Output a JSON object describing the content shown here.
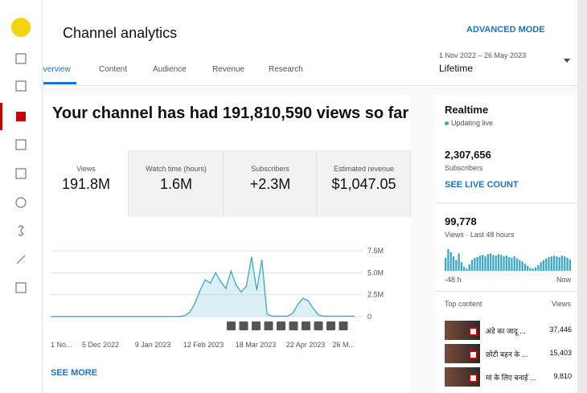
{
  "header": {
    "title": "Channel analytics",
    "advanced_mode": "ADVANCED MODE"
  },
  "tabs": [
    "Overview",
    "Content",
    "Audience",
    "Revenue",
    "Research"
  ],
  "date_range": {
    "range": "1 Nov 2022 – 26 May 2023",
    "label": "Lifetime"
  },
  "headline": "Your channel has had 191,810,590 views so far",
  "metrics": [
    {
      "label": "Views",
      "value": "191.8M"
    },
    {
      "label": "Watch time (hours)",
      "value": "1.6M"
    },
    {
      "label": "Subscribers",
      "value": "+2.3M"
    },
    {
      "label": "Estimated revenue",
      "value": "$1,047.05"
    }
  ],
  "chart": {
    "type": "line",
    "color": "#3ea6c6",
    "x_labels": [
      "1 No...",
      "5 Dec 2022",
      "9 Jan 2023",
      "12 Feb 2023",
      "18 Mar 2023",
      "22 Apr 2023",
      "26 M..."
    ],
    "values": [
      20000,
      20000,
      20000,
      20000,
      20000,
      20000,
      20000,
      20000,
      20000,
      20000,
      20000,
      20000,
      20000,
      20000,
      20000,
      20000,
      20000,
      20000,
      20000,
      20000,
      20000,
      20000,
      20000,
      20000,
      20000,
      30000,
      100000,
      500000,
      1500000,
      3000000,
      4200000,
      3800000,
      5000000,
      4000000,
      3200000,
      5200000,
      3600000,
      2800000,
      3500000,
      6800000,
      3000000,
      6500000,
      300000,
      50000,
      50000,
      50000,
      50000,
      400000,
      1400000,
      2100000,
      1800000,
      900000,
      200000,
      50000,
      50000,
      50000,
      50000,
      50000,
      50000,
      50000
    ],
    "ylim": [
      0,
      7500000
    ],
    "yticks": [
      0,
      {
        "value": 2500000,
        "label": "2.5M"
      },
      {
        "value": 5000000,
        "label": "5.0M"
      },
      {
        "value": 7500000,
        "label": "7.5M"
      }
    ],
    "see_more": "SEE MORE"
  },
  "realtime": {
    "title": "Realtime",
    "status": "Updating live",
    "subscribers": "2,307,656",
    "subscribers_label": "Subscribers",
    "live_count": "SEE LIVE COUNT",
    "views": "99,778",
    "views_label": "Views · Last 48 hours",
    "start": "-48 h",
    "end": "Now",
    "bars": [
      1800,
      3000,
      2600,
      2000,
      1500,
      2400,
      1200,
      600,
      300,
      900,
      1500,
      1800,
      1900,
      2100,
      2200,
      2000,
      2300,
      2400,
      2200,
      2100,
      2300,
      2200,
      2000,
      2100,
      1900,
      1800,
      2000,
      1700,
      1500,
      1300,
      1000,
      700,
      400,
      300,
      500,
      800,
      1200,
      1500,
      1700,
      1900,
      2000,
      2100,
      2000,
      1900,
      2100,
      2000,
      1800,
      1600
    ],
    "top_content": "Top content",
    "views_col": "Views",
    "items": [
      {
        "title": "अंडे का जादू ...",
        "views": "37,446"
      },
      {
        "title": "छोटी बहन के ...",
        "views": "15,403"
      },
      {
        "title": "मां के लिए बनाई ...",
        "views": "9,810"
      }
    ]
  }
}
